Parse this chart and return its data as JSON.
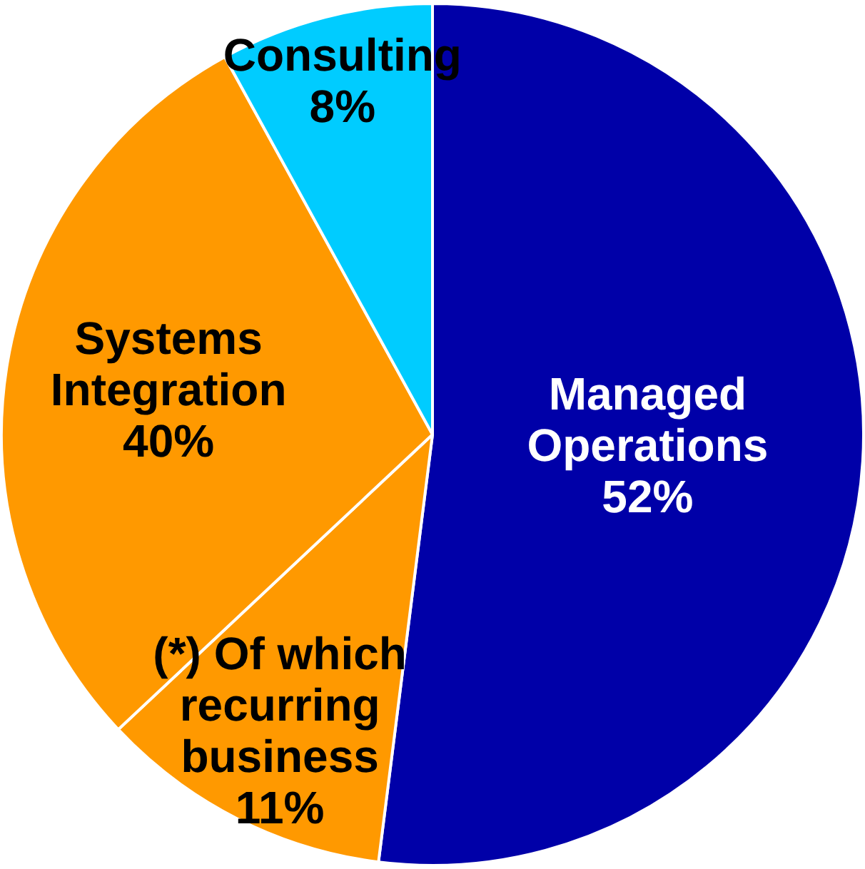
{
  "chart_data": {
    "type": "pie",
    "categories": [
      "Managed Operations",
      "(*) Of which recurring business",
      "Systems Integration",
      "Consulting"
    ],
    "values": [
      52,
      11,
      29,
      8
    ],
    "value_labels": [
      "52%",
      "11%",
      null,
      "8%"
    ],
    "annotations": [
      "40%"
    ],
    "colors": [
      "#0000a8",
      "#ff9900",
      "#ff9900",
      "#00ccff"
    ],
    "legend": false
  }
}
